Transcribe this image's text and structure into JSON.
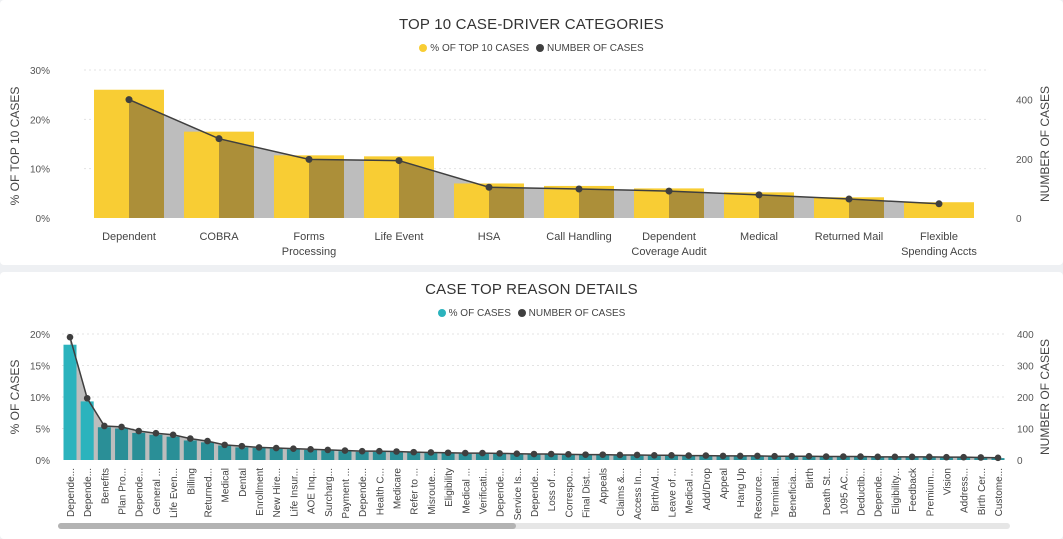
{
  "charts": [
    {
      "type": "bar",
      "title": "TOP 10 CASE-DRIVER CATEGORIES",
      "legend": [
        {
          "label": "% OF TOP 10 CASES",
          "color": "#f8cd34"
        },
        {
          "label": "NUMBER OF CASES",
          "color": "#3f3f3f"
        }
      ],
      "ylabel_left": "% OF TOP 10 CASES",
      "ylabel_right": "NUMBER OF CASES",
      "yticks_left": [
        "30%",
        "20%",
        "10%",
        "0%"
      ],
      "yticks_right": [
        "400",
        "200",
        "0"
      ],
      "ylim_left": [
        0,
        30
      ],
      "ylim_right": [
        0,
        500
      ],
      "categories": [
        "Dependent",
        "COBRA",
        "Forms Processing",
        "Life Event",
        "HSA",
        "Call Handling",
        "Dependent Coverage Audit",
        "Medical",
        "Returned Mail",
        "Flexible Spending Accts"
      ],
      "series": [
        {
          "name": "% OF TOP 10 CASES",
          "axis": "left",
          "values": [
            26.0,
            17.5,
            12.7,
            12.5,
            7.0,
            6.5,
            6.0,
            5.2,
            4.2,
            3.2
          ]
        },
        {
          "name": "NUMBER OF CASES",
          "axis": "right",
          "values": [
            400,
            268,
            198,
            194,
            104,
            98,
            91,
            78,
            64,
            48
          ]
        }
      ]
    },
    {
      "type": "bar",
      "title": "CASE TOP REASON DETAILS",
      "legend": [
        {
          "label": "% OF CASES",
          "color": "#2bb3bd"
        },
        {
          "label": "NUMBER OF CASES",
          "color": "#3f3f3f"
        }
      ],
      "ylabel_left": "% OF CASES",
      "ylabel_right": "NUMBER OF CASES",
      "yticks_left": [
        "20%",
        "15%",
        "10%",
        "5%",
        "0%"
      ],
      "yticks_right": [
        "400",
        "300",
        "200",
        "100",
        "0"
      ],
      "ylim_left": [
        0,
        20
      ],
      "ylim_right": [
        0,
        400
      ],
      "categories": [
        "Depende...",
        "Depende...",
        "Benefits",
        "Plan Pro...",
        "Depende...",
        "General ...",
        "Life Even...",
        "Billing",
        "Returned...",
        "Medical",
        "Dental",
        "Enrollment",
        "New Hire...",
        "Life Insur...",
        "AOE Inq...",
        "Surcharg...",
        "Payment ...",
        "Depende...",
        "Health C...",
        "Medicare",
        "Refer to ...",
        "Misroute...",
        "Eligibility",
        "Medical ...",
        "Verificati...",
        "Depende...",
        "Service Is...",
        "Depende...",
        "Loss of ...",
        "Correspo...",
        "Final Dist...",
        "Appeals",
        "Claims &...",
        "Access In...",
        "Birth/Ad...",
        "Leave of ...",
        "Medical ...",
        "Add/Drop",
        "Appeal",
        "Hang Up",
        "Resource...",
        "Terminati...",
        "Beneficia...",
        "Birth",
        "Death St...",
        "1095 AC...",
        "Deductib...",
        "Depende...",
        "Eligibility...",
        "Feedback",
        "Premium...",
        "Vision",
        "Address...",
        "Birth Cer...",
        "Custome..."
      ],
      "series": [
        {
          "name": "% OF CASES",
          "axis": "left",
          "values": [
            18.3,
            9.3,
            5.2,
            5.0,
            4.3,
            4.0,
            3.7,
            3.1,
            2.8,
            2.3,
            2.0,
            1.9,
            1.8,
            1.7,
            1.6,
            1.5,
            1.4,
            1.3,
            1.3,
            1.3,
            1.2,
            1.1,
            1.1,
            1.0,
            1.0,
            1.0,
            1.0,
            0.9,
            0.9,
            0.8,
            0.8,
            0.8,
            0.7,
            0.7,
            0.7,
            0.7,
            0.7,
            0.6,
            0.6,
            0.6,
            0.6,
            0.6,
            0.5,
            0.5,
            0.5,
            0.5,
            0.5,
            0.5,
            0.5,
            0.5,
            0.4,
            0.4,
            0.4,
            0.4,
            0.3
          ]
        },
        {
          "name": "NUMBER OF CASES",
          "axis": "right",
          "values": [
            390,
            196,
            108,
            105,
            92,
            85,
            80,
            68,
            60,
            48,
            44,
            40,
            38,
            36,
            34,
            32,
            30,
            28,
            28,
            27,
            25,
            24,
            23,
            22,
            22,
            21,
            20,
            19,
            19,
            18,
            17,
            17,
            16,
            16,
            15,
            15,
            14,
            14,
            13,
            13,
            13,
            12,
            12,
            12,
            11,
            11,
            11,
            10,
            10,
            10,
            10,
            9,
            9,
            8,
            7
          ]
        }
      ]
    }
  ]
}
